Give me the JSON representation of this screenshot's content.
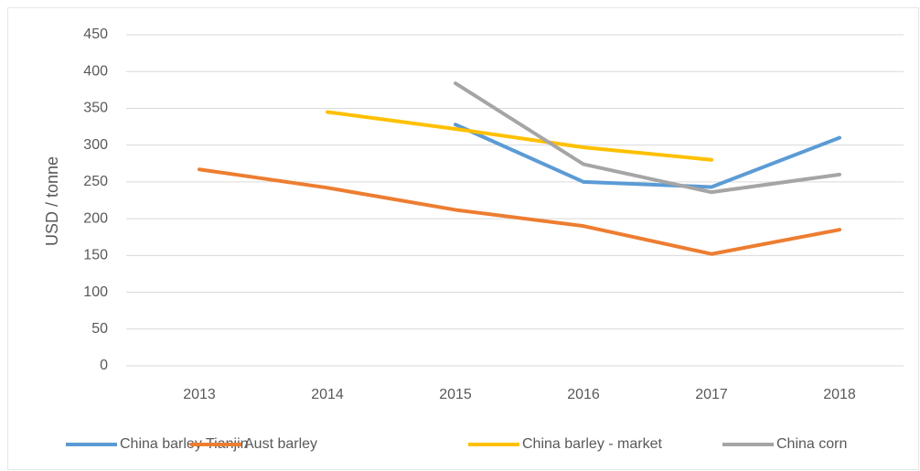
{
  "chart_data": {
    "type": "line",
    "y_label": "USD / tonne",
    "categories": [
      "2013",
      "2014",
      "2015",
      "2016",
      "2017",
      "2018"
    ],
    "series": [
      {
        "name": "China barley Tianjin",
        "color": "#5b9bd5",
        "values": [
          null,
          null,
          328,
          250,
          243,
          310
        ]
      },
      {
        "name": "Aust barley",
        "color": "#ed7d31",
        "values": [
          267,
          242,
          212,
          190,
          152,
          185
        ]
      },
      {
        "name": "China barley - market",
        "color": "#ffc000",
        "values": [
          null,
          345,
          322,
          297,
          280,
          null
        ]
      },
      {
        "name": "China corn",
        "color": "#a5a5a5",
        "values": [
          null,
          null,
          384,
          274,
          236,
          260
        ]
      }
    ],
    "ylim": [
      0,
      450
    ],
    "yticks": [
      0,
      50,
      100,
      150,
      200,
      250,
      300,
      350,
      400,
      450
    ],
    "grid": true,
    "legend": "bottom"
  }
}
